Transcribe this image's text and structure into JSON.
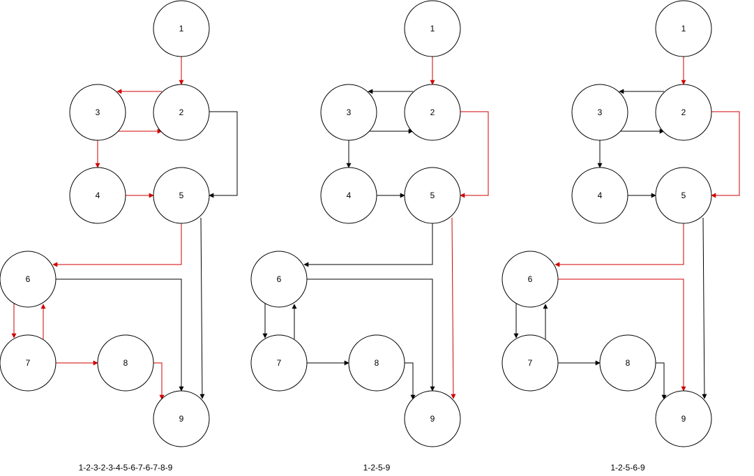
{
  "colors": {
    "default_edge": "#000000",
    "highlight_edge": "#d00000",
    "node_stroke": "#000000",
    "node_fill": "#ffffff"
  },
  "graphs": [
    {
      "caption": "1-2-3-2-3-4-5-6-7-6-7-8-9",
      "nodes": [
        "1",
        "2",
        "3",
        "4",
        "5",
        "6",
        "7",
        "8",
        "9"
      ],
      "highlight": [
        "1-2",
        "2-3",
        "3-2",
        "3-4",
        "4-5",
        "5-6",
        "6-7",
        "7-6",
        "7-8",
        "8-9"
      ]
    },
    {
      "caption": "1-2-5-9",
      "nodes": [
        "1",
        "2",
        "3",
        "4",
        "5",
        "6",
        "7",
        "8",
        "9"
      ],
      "highlight": [
        "1-2",
        "2-5",
        "5-9"
      ]
    },
    {
      "caption": "1-2-5-6-9",
      "nodes": [
        "1",
        "2",
        "3",
        "4",
        "5",
        "6",
        "7",
        "8",
        "9"
      ],
      "highlight": [
        "1-2",
        "2-5",
        "5-6",
        "6-9"
      ]
    }
  ],
  "edges": [
    "1-2",
    "2-3",
    "3-2",
    "3-4",
    "4-5",
    "2-5",
    "5-6",
    "5-9",
    "6-7",
    "7-6",
    "6-9",
    "7-8",
    "8-9"
  ]
}
